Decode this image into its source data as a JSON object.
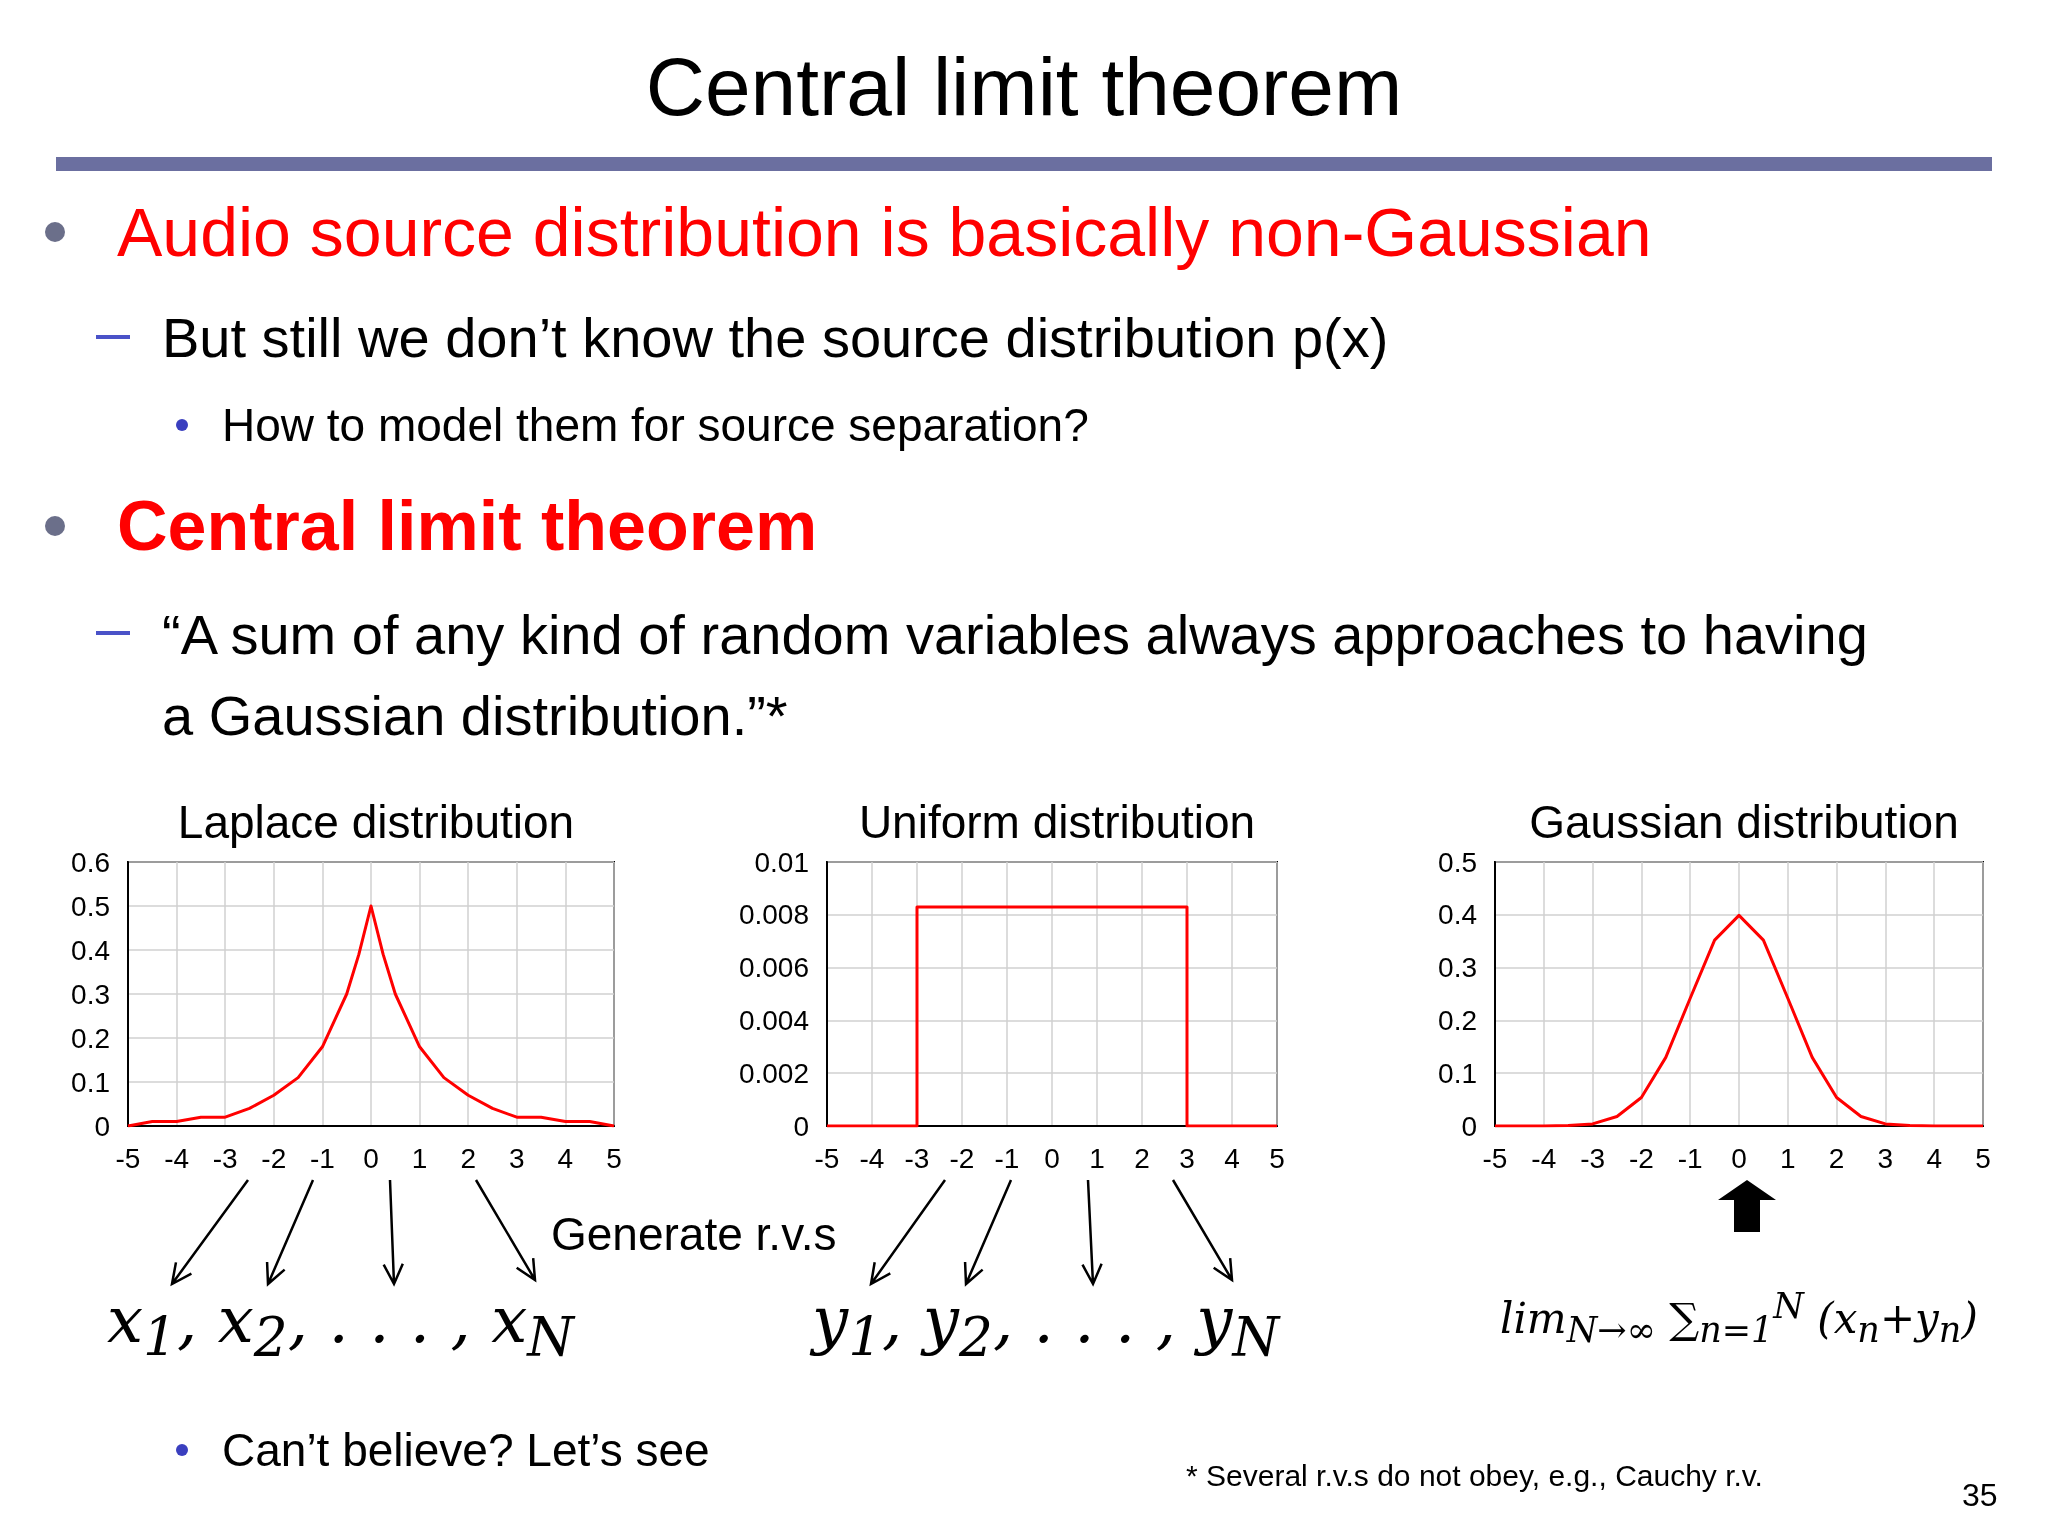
{
  "chart_data": [
    {
      "type": "other",
      "title": "Central limit theorem",
      "annotations": [
        "Audio source distribution is basically non-Gaussian",
        "But still we don’t know the source distribution p(x)",
        "How to model them for source separation?",
        "Central limit theorem",
        "“A sum of any kind of random variables always approaches to having a Gaussian distribution.”*",
        "Generate r.v.s",
        "x$_{1}$, x$_{2}$, . . . , x$_{N}$",
        "y$_{1}$, y$_{2}$, . . . , y$_{N}$",
        "lim$_{N→∞}$ ∑$_{n=1}$$^{N}$ (x$_{n}$+y$_{n}$)",
        "Can’t believe? Let’s see",
        "* Several r.v.s do not obey, e.g., Cauchy r.v.",
        "35"
      ]
    },
    {
      "type": "line",
      "title": "Laplace distribution",
      "x": [
        -5,
        -4.5,
        -4,
        -3.5,
        -3,
        -2.5,
        -2,
        -1.5,
        -1,
        -0.5,
        -0.25,
        0,
        0.25,
        0.5,
        1,
        1.5,
        2,
        2.5,
        3,
        3.5,
        4,
        4.5,
        5
      ],
      "values": [
        0.0,
        0.01,
        0.01,
        0.02,
        0.02,
        0.04,
        0.07,
        0.11,
        0.18,
        0.3,
        0.39,
        0.5,
        0.39,
        0.3,
        0.18,
        0.11,
        0.07,
        0.04,
        0.02,
        0.02,
        0.01,
        0.01,
        0.0
      ],
      "color": "#ff0000",
      "xlim": [
        -5,
        5
      ],
      "xticks": [
        -5,
        -4,
        -3,
        -2,
        -1,
        0,
        1,
        2,
        3,
        4,
        5
      ],
      "ylim": [
        0,
        0.6
      ],
      "yticks": [
        0,
        0.1,
        0.2,
        0.3,
        0.4,
        0.5,
        0.6
      ],
      "grid": true
    },
    {
      "type": "line",
      "title": "Uniform distribution",
      "x": [
        -5,
        -3,
        -3,
        3,
        3,
        5
      ],
      "values": [
        0,
        0,
        0.0083,
        0.0083,
        0,
        0
      ],
      "color": "#ff0000",
      "xlim": [
        -5,
        5
      ],
      "xticks": [
        -5,
        -4,
        -3,
        -2,
        -1,
        0,
        1,
        2,
        3,
        4,
        5
      ],
      "ylim": [
        0,
        0.01
      ],
      "yticks": [
        0,
        0.002,
        0.004,
        0.006,
        0.008,
        0.01
      ],
      "grid": true
    },
    {
      "type": "line",
      "title": "Gaussian distribution",
      "x": [
        -5,
        -4.5,
        -4,
        -3.5,
        -3,
        -2.5,
        -2,
        -1.5,
        -1,
        -0.5,
        0,
        0.5,
        1,
        1.5,
        2,
        2.5,
        3,
        3.5,
        4,
        4.5,
        5
      ],
      "values": [
        0,
        0,
        0,
        0.001,
        0.004,
        0.018,
        0.054,
        0.13,
        0.242,
        0.352,
        0.399,
        0.352,
        0.242,
        0.13,
        0.054,
        0.018,
        0.004,
        0.001,
        0,
        0,
        0
      ],
      "color": "#ff0000",
      "xlim": [
        -5,
        5
      ],
      "xticks": [
        -5,
        -4,
        -3,
        -2,
        -1,
        0,
        1,
        2,
        3,
        4,
        5
      ],
      "ylim": [
        0,
        0.5
      ],
      "yticks": [
        0,
        0.1,
        0.2,
        0.3,
        0.4,
        0.5
      ],
      "grid": true
    }
  ]
}
